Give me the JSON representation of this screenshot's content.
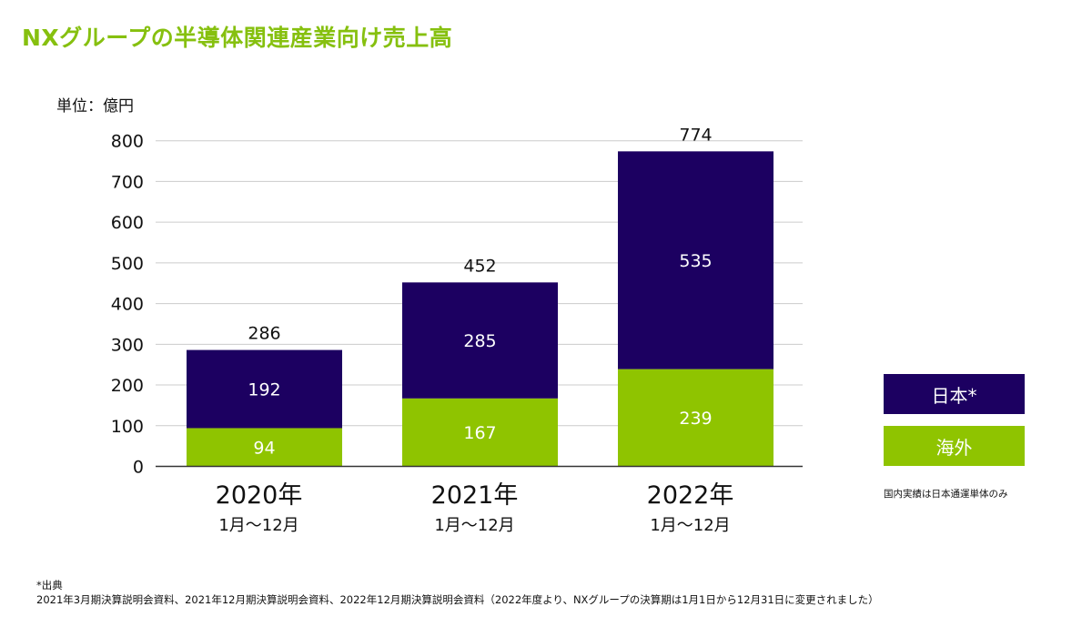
{
  "title": "NXグループの半導体関連産業向け売上高",
  "unit_label": "単位：億円",
  "chart_data": {
    "type": "bar",
    "stacked": true,
    "title": "NXグループの半導体関連産業向け売上高",
    "ylabel": "単位：億円",
    "xlabel": "",
    "ylim": [
      0,
      800
    ],
    "yticks": [
      0,
      100,
      200,
      300,
      400,
      500,
      600,
      700,
      800
    ],
    "grid": true,
    "legend_position": "right",
    "categories": [
      {
        "year": "2020年",
        "period": "1月～12月"
      },
      {
        "year": "2021年",
        "period": "1月～12月"
      },
      {
        "year": "2022年",
        "period": "1月～12月"
      }
    ],
    "series": [
      {
        "name": "海外",
        "color": "#8fc400",
        "values": [
          94,
          167,
          239
        ]
      },
      {
        "name": "日本*",
        "color": "#1c0061",
        "values": [
          192,
          285,
          535
        ]
      }
    ],
    "totals": [
      286,
      452,
      774
    ]
  },
  "legend": {
    "japan_label": "日本*",
    "overseas_label": "海外",
    "note": "国内実績は日本通運単体のみ"
  },
  "footnote": {
    "heading": "*出典",
    "text": "2021年3月期決算説明会資料、2021年12月期決算説明会資料、2022年12月期決算説明会資料（2022年度より、NXグループの決算期は1月1日から12月31日に変更されました）"
  }
}
